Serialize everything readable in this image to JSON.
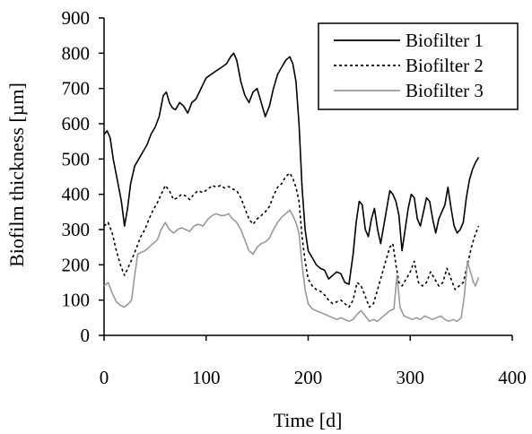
{
  "chart_data": {
    "type": "line",
    "title": "",
    "xlabel": "Time [d]",
    "ylabel": "Biofilm thickness [µm]",
    "xlim": [
      0,
      400
    ],
    "ylim": [
      0,
      900
    ],
    "xticks": [
      0,
      100,
      200,
      300,
      400
    ],
    "yticks": [
      0,
      100,
      200,
      300,
      400,
      500,
      600,
      700,
      800,
      900
    ],
    "grid": false,
    "legend_position": "top-right",
    "series": [
      {
        "name": "Biofilter 1",
        "color": "#000000",
        "dash": "solid",
        "points": [
          [
            0,
            570
          ],
          [
            3,
            580
          ],
          [
            6,
            560
          ],
          [
            9,
            500
          ],
          [
            13,
            440
          ],
          [
            17,
            380
          ],
          [
            20,
            310
          ],
          [
            23,
            360
          ],
          [
            26,
            430
          ],
          [
            30,
            480
          ],
          [
            34,
            500
          ],
          [
            38,
            520
          ],
          [
            42,
            540
          ],
          [
            46,
            570
          ],
          [
            50,
            590
          ],
          [
            54,
            620
          ],
          [
            58,
            680
          ],
          [
            61,
            690
          ],
          [
            64,
            660
          ],
          [
            67,
            645
          ],
          [
            70,
            640
          ],
          [
            74,
            660
          ],
          [
            78,
            650
          ],
          [
            82,
            630
          ],
          [
            86,
            660
          ],
          [
            90,
            670
          ],
          [
            95,
            700
          ],
          [
            100,
            730
          ],
          [
            105,
            740
          ],
          [
            110,
            750
          ],
          [
            115,
            760
          ],
          [
            120,
            770
          ],
          [
            124,
            790
          ],
          [
            127,
            800
          ],
          [
            130,
            780
          ],
          [
            134,
            720
          ],
          [
            138,
            680
          ],
          [
            142,
            660
          ],
          [
            146,
            690
          ],
          [
            150,
            700
          ],
          [
            154,
            660
          ],
          [
            158,
            620
          ],
          [
            162,
            650
          ],
          [
            166,
            700
          ],
          [
            170,
            740
          ],
          [
            174,
            760
          ],
          [
            178,
            780
          ],
          [
            182,
            790
          ],
          [
            185,
            770
          ],
          [
            188,
            720
          ],
          [
            191,
            600
          ],
          [
            194,
            420
          ],
          [
            197,
            300
          ],
          [
            200,
            240
          ],
          [
            204,
            220
          ],
          [
            208,
            200
          ],
          [
            212,
            190
          ],
          [
            216,
            185
          ],
          [
            220,
            160
          ],
          [
            224,
            170
          ],
          [
            228,
            180
          ],
          [
            232,
            175
          ],
          [
            236,
            150
          ],
          [
            240,
            145
          ],
          [
            244,
            230
          ],
          [
            247,
            320
          ],
          [
            250,
            380
          ],
          [
            253,
            370
          ],
          [
            256,
            300
          ],
          [
            259,
            280
          ],
          [
            262,
            330
          ],
          [
            265,
            360
          ],
          [
            268,
            300
          ],
          [
            271,
            260
          ],
          [
            274,
            310
          ],
          [
            277,
            360
          ],
          [
            280,
            410
          ],
          [
            283,
            400
          ],
          [
            286,
            380
          ],
          [
            289,
            340
          ],
          [
            292,
            240
          ],
          [
            295,
            300
          ],
          [
            298,
            360
          ],
          [
            301,
            400
          ],
          [
            304,
            390
          ],
          [
            307,
            330
          ],
          [
            310,
            310
          ],
          [
            313,
            350
          ],
          [
            316,
            390
          ],
          [
            319,
            380
          ],
          [
            322,
            330
          ],
          [
            325,
            290
          ],
          [
            328,
            330
          ],
          [
            331,
            350
          ],
          [
            334,
            370
          ],
          [
            337,
            420
          ],
          [
            340,
            360
          ],
          [
            343,
            310
          ],
          [
            346,
            290
          ],
          [
            349,
            300
          ],
          [
            352,
            320
          ],
          [
            355,
            390
          ],
          [
            358,
            440
          ],
          [
            361,
            470
          ],
          [
            364,
            490
          ],
          [
            367,
            505
          ]
        ]
      },
      {
        "name": "Biofilter 2",
        "color": "#000000",
        "dash": "dotted",
        "points": [
          [
            0,
            310
          ],
          [
            4,
            320
          ],
          [
            8,
            290
          ],
          [
            12,
            240
          ],
          [
            16,
            200
          ],
          [
            20,
            170
          ],
          [
            24,
            195
          ],
          [
            28,
            220
          ],
          [
            32,
            250
          ],
          [
            36,
            280
          ],
          [
            40,
            300
          ],
          [
            44,
            330
          ],
          [
            48,
            355
          ],
          [
            52,
            375
          ],
          [
            56,
            400
          ],
          [
            60,
            425
          ],
          [
            64,
            410
          ],
          [
            68,
            385
          ],
          [
            72,
            390
          ],
          [
            76,
            400
          ],
          [
            80,
            395
          ],
          [
            84,
            385
          ],
          [
            88,
            400
          ],
          [
            92,
            410
          ],
          [
            97,
            405
          ],
          [
            102,
            415
          ],
          [
            106,
            425
          ],
          [
            110,
            420
          ],
          [
            114,
            425
          ],
          [
            118,
            418
          ],
          [
            122,
            422
          ],
          [
            126,
            415
          ],
          [
            130,
            410
          ],
          [
            134,
            390
          ],
          [
            138,
            360
          ],
          [
            142,
            330
          ],
          [
            146,
            315
          ],
          [
            150,
            330
          ],
          [
            154,
            340
          ],
          [
            158,
            350
          ],
          [
            162,
            365
          ],
          [
            166,
            395
          ],
          [
            170,
            420
          ],
          [
            174,
            430
          ],
          [
            178,
            450
          ],
          [
            182,
            460
          ],
          [
            185,
            445
          ],
          [
            188,
            420
          ],
          [
            191,
            380
          ],
          [
            194,
            280
          ],
          [
            197,
            210
          ],
          [
            200,
            160
          ],
          [
            204,
            140
          ],
          [
            208,
            130
          ],
          [
            212,
            125
          ],
          [
            216,
            115
          ],
          [
            220,
            100
          ],
          [
            224,
            90
          ],
          [
            228,
            95
          ],
          [
            232,
            100
          ],
          [
            236,
            90
          ],
          [
            240,
            80
          ],
          [
            244,
            100
          ],
          [
            248,
            150
          ],
          [
            252,
            140
          ],
          [
            256,
            110
          ],
          [
            260,
            80
          ],
          [
            264,
            90
          ],
          [
            268,
            130
          ],
          [
            272,
            170
          ],
          [
            276,
            210
          ],
          [
            280,
            250
          ],
          [
            283,
            260
          ],
          [
            286,
            200
          ],
          [
            289,
            150
          ],
          [
            292,
            140
          ],
          [
            296,
            160
          ],
          [
            300,
            180
          ],
          [
            304,
            210
          ],
          [
            308,
            150
          ],
          [
            312,
            140
          ],
          [
            316,
            150
          ],
          [
            320,
            180
          ],
          [
            324,
            160
          ],
          [
            328,
            140
          ],
          [
            332,
            150
          ],
          [
            336,
            190
          ],
          [
            340,
            160
          ],
          [
            344,
            130
          ],
          [
            348,
            140
          ],
          [
            352,
            150
          ],
          [
            356,
            200
          ],
          [
            360,
            250
          ],
          [
            363,
            280
          ],
          [
            367,
            310
          ]
        ]
      },
      {
        "name": "Biofilter 3",
        "color": "#999999",
        "dash": "solid",
        "points": [
          [
            0,
            140
          ],
          [
            4,
            150
          ],
          [
            8,
            120
          ],
          [
            12,
            95
          ],
          [
            16,
            85
          ],
          [
            20,
            80
          ],
          [
            24,
            90
          ],
          [
            27,
            100
          ],
          [
            30,
            170
          ],
          [
            33,
            230
          ],
          [
            36,
            235
          ],
          [
            40,
            240
          ],
          [
            44,
            250
          ],
          [
            48,
            260
          ],
          [
            52,
            270
          ],
          [
            56,
            300
          ],
          [
            60,
            320
          ],
          [
            64,
            300
          ],
          [
            68,
            290
          ],
          [
            72,
            300
          ],
          [
            76,
            305
          ],
          [
            80,
            300
          ],
          [
            84,
            295
          ],
          [
            88,
            310
          ],
          [
            92,
            315
          ],
          [
            97,
            310
          ],
          [
            102,
            330
          ],
          [
            106,
            340
          ],
          [
            110,
            345
          ],
          [
            114,
            340
          ],
          [
            118,
            340
          ],
          [
            122,
            345
          ],
          [
            126,
            330
          ],
          [
            130,
            320
          ],
          [
            134,
            300
          ],
          [
            138,
            270
          ],
          [
            142,
            240
          ],
          [
            146,
            230
          ],
          [
            150,
            250
          ],
          [
            154,
            260
          ],
          [
            158,
            265
          ],
          [
            162,
            275
          ],
          [
            166,
            300
          ],
          [
            170,
            320
          ],
          [
            174,
            335
          ],
          [
            178,
            345
          ],
          [
            182,
            355
          ],
          [
            185,
            340
          ],
          [
            188,
            320
          ],
          [
            191,
            290
          ],
          [
            194,
            200
          ],
          [
            197,
            130
          ],
          [
            200,
            90
          ],
          [
            204,
            75
          ],
          [
            208,
            70
          ],
          [
            212,
            65
          ],
          [
            216,
            60
          ],
          [
            220,
            55
          ],
          [
            224,
            50
          ],
          [
            228,
            45
          ],
          [
            232,
            50
          ],
          [
            236,
            45
          ],
          [
            240,
            40
          ],
          [
            244,
            45
          ],
          [
            248,
            60
          ],
          [
            252,
            70
          ],
          [
            256,
            55
          ],
          [
            260,
            40
          ],
          [
            264,
            45
          ],
          [
            268,
            40
          ],
          [
            272,
            50
          ],
          [
            276,
            60
          ],
          [
            280,
            70
          ],
          [
            284,
            75
          ],
          [
            287,
            170
          ],
          [
            290,
            80
          ],
          [
            294,
            55
          ],
          [
            298,
            50
          ],
          [
            302,
            45
          ],
          [
            306,
            50
          ],
          [
            310,
            45
          ],
          [
            314,
            55
          ],
          [
            318,
            50
          ],
          [
            322,
            45
          ],
          [
            326,
            50
          ],
          [
            330,
            55
          ],
          [
            334,
            45
          ],
          [
            338,
            40
          ],
          [
            342,
            45
          ],
          [
            346,
            40
          ],
          [
            350,
            50
          ],
          [
            353,
            110
          ],
          [
            356,
            210
          ],
          [
            359,
            180
          ],
          [
            362,
            150
          ],
          [
            364,
            140
          ],
          [
            367,
            165
          ]
        ]
      }
    ]
  }
}
